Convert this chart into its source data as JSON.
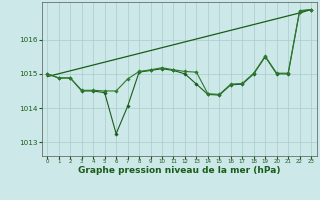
{
  "background_color": "#cce8e8",
  "grid_color": "#aacccc",
  "line_color_dark": "#1a5c1a",
  "line_color_medium": "#2d7a2d",
  "line_color_light": "#3a9a3a",
  "xlabel": "Graphe pression niveau de la mer (hPa)",
  "xlabel_fontsize": 6.5,
  "ylim": [
    1012.6,
    1017.1
  ],
  "xlim": [
    -0.5,
    23.5
  ],
  "yticks": [
    1013,
    1014,
    1015,
    1016
  ],
  "xticks": [
    0,
    1,
    2,
    3,
    4,
    5,
    6,
    7,
    8,
    9,
    10,
    11,
    12,
    13,
    14,
    15,
    16,
    17,
    18,
    19,
    20,
    21,
    22,
    23
  ],
  "series1_x": [
    0,
    1,
    2,
    3,
    4,
    5,
    6,
    7,
    8,
    9,
    10,
    11,
    12,
    13,
    14,
    15,
    16,
    17,
    18,
    19,
    20,
    21,
    22,
    23
  ],
  "series1_y": [
    1015.0,
    1014.88,
    1014.88,
    1014.5,
    1014.5,
    1014.45,
    1013.25,
    1014.05,
    1015.05,
    1015.1,
    1015.15,
    1015.1,
    1015.0,
    1014.7,
    1014.4,
    1014.38,
    1014.68,
    1014.7,
    1015.0,
    1015.5,
    1015.0,
    1015.0,
    1016.82,
    1016.88
  ],
  "series2_x": [
    0,
    1,
    2,
    3,
    4,
    5,
    6,
    7,
    8,
    9,
    10,
    11,
    12,
    13,
    14,
    15,
    16,
    17,
    18,
    19,
    20,
    21,
    22,
    23
  ],
  "series2_y": [
    1015.0,
    1014.88,
    1014.88,
    1014.52,
    1014.52,
    1014.5,
    1014.5,
    1014.85,
    1015.07,
    1015.12,
    1015.18,
    1015.12,
    1015.07,
    1015.05,
    1014.42,
    1014.4,
    1014.7,
    1014.72,
    1015.02,
    1015.52,
    1015.02,
    1015.02,
    1016.85,
    1016.88
  ],
  "series3_x": [
    0,
    22,
    23
  ],
  "series3_y": [
    1014.92,
    1016.78,
    1016.88
  ],
  "tick_color": "#1a5c1a",
  "spine_color": "#555555"
}
